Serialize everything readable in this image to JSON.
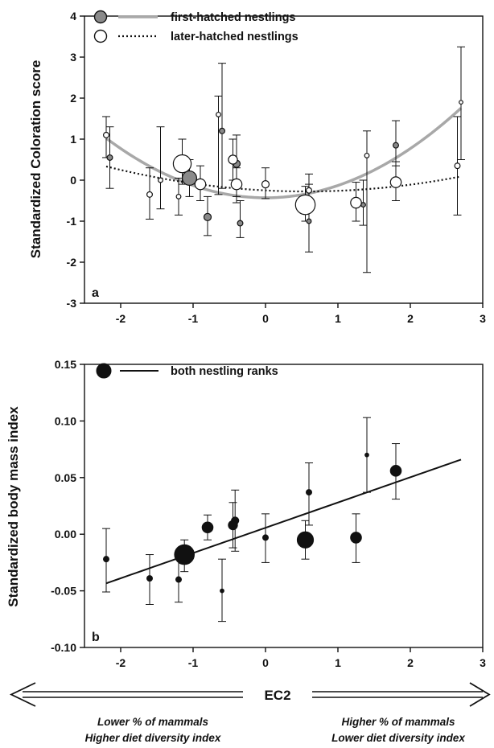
{
  "chart_data": [
    {
      "panel": "a",
      "type": "scatter",
      "ylabel": "Standardized Coloration score",
      "xlim": [
        -2.5,
        3
      ],
      "ylim": [
        -3,
        4
      ],
      "x_ticks": [
        "-2",
        "-1",
        "0",
        "1",
        "2",
        "3"
      ],
      "y_ticks": [
        "-3",
        "-2",
        "-1",
        "0",
        "1",
        "2",
        "3",
        "4"
      ],
      "grid": false,
      "legend_position": "top-left",
      "colors": {
        "first": "#8a8a8a",
        "first_line": "#a8a8a8",
        "later": "#ffffff",
        "stroke": "#111111"
      },
      "series": [
        {
          "name": "first-hatched nestlings",
          "marker": "filled-gray",
          "line": "solid",
          "fit": {
            "type": "quadratic",
            "coefficients": [
              -0.43,
              0.0,
              0.3
            ]
          },
          "points": [
            {
              "x": -2.15,
              "y": 0.55,
              "lo": -0.2,
              "hi": 1.3,
              "size": 2
            },
            {
              "x": -1.05,
              "y": 0.05,
              "lo": -0.4,
              "hi": 0.5,
              "size": 7
            },
            {
              "x": -0.8,
              "y": -0.9,
              "lo": -1.35,
              "hi": -0.4,
              "size": 3
            },
            {
              "x": -0.6,
              "y": 1.2,
              "lo": -0.2,
              "hi": 2.85,
              "size": 2
            },
            {
              "x": -0.4,
              "y": 0.4,
              "lo": -0.55,
              "hi": 1.1,
              "size": 3
            },
            {
              "x": -0.35,
              "y": -1.05,
              "lo": -1.4,
              "hi": -0.5,
              "size": 2
            },
            {
              "x": 0.6,
              "y": -1.0,
              "lo": -1.75,
              "hi": -0.1,
              "size": 1.5
            },
            {
              "x": 1.35,
              "y": -0.6,
              "lo": -1.1,
              "hi": 0.0,
              "size": 1.5
            },
            {
              "x": 1.8,
              "y": 0.85,
              "lo": 0.35,
              "hi": 1.45,
              "size": 2
            }
          ]
        },
        {
          "name": "later-hatched nestlings",
          "marker": "open-white",
          "line": "dotted",
          "fit": {
            "type": "quadratic",
            "coefficients": [
              -0.25,
              -0.09,
              0.08
            ]
          },
          "points": [
            {
              "x": -2.2,
              "y": 1.1,
              "lo": 0.55,
              "hi": 1.55,
              "size": 2
            },
            {
              "x": -1.6,
              "y": -0.35,
              "lo": -0.95,
              "hi": 0.3,
              "size": 2
            },
            {
              "x": -1.45,
              "y": 0.0,
              "lo": -0.7,
              "hi": 1.3,
              "size": 1.5
            },
            {
              "x": -1.15,
              "y": 0.4,
              "lo": -0.1,
              "hi": 1.0,
              "size": 9
            },
            {
              "x": -1.2,
              "y": -0.4,
              "lo": -0.85,
              "hi": 0.05,
              "size": 1.5
            },
            {
              "x": -0.9,
              "y": -0.1,
              "lo": -0.5,
              "hi": 0.35,
              "size": 5
            },
            {
              "x": -0.45,
              "y": 0.5,
              "lo": 0.0,
              "hi": 1.0,
              "size": 4
            },
            {
              "x": -0.4,
              "y": -0.1,
              "lo": -0.4,
              "hi": 0.3,
              "size": 5
            },
            {
              "x": -0.65,
              "y": 1.6,
              "lo": -0.35,
              "hi": 2.05,
              "size": 1.5
            },
            {
              "x": 0.0,
              "y": -0.1,
              "lo": -0.45,
              "hi": 0.3,
              "size": 3
            },
            {
              "x": 0.55,
              "y": -0.6,
              "lo": -1.0,
              "hi": -0.15,
              "size": 10
            },
            {
              "x": 0.6,
              "y": -0.25,
              "lo": -0.7,
              "hi": 0.15,
              "size": 2
            },
            {
              "x": 1.25,
              "y": -0.55,
              "lo": -1.0,
              "hi": -0.05,
              "size": 5
            },
            {
              "x": 1.4,
              "y": 0.6,
              "lo": -2.25,
              "hi": 1.2,
              "size": 1.5
            },
            {
              "x": 1.8,
              "y": -0.05,
              "lo": -0.5,
              "hi": 0.45,
              "size": 5
            },
            {
              "x": 2.65,
              "y": 0.35,
              "lo": -0.85,
              "hi": 1.55,
              "size": 2
            },
            {
              "x": 2.7,
              "y": 1.9,
              "lo": 0.5,
              "hi": 3.25,
              "size": 1
            }
          ]
        }
      ]
    },
    {
      "panel": "b",
      "type": "scatter",
      "ylabel": "Standardized body mass index",
      "xlim": [
        -2.5,
        3
      ],
      "ylim": [
        -0.1,
        0.15
      ],
      "x_ticks": [
        "-2",
        "-1",
        "0",
        "1",
        "2",
        "3"
      ],
      "y_ticks": [
        "-0.10",
        "-0.05",
        "0.00",
        "0.05",
        "0.10",
        "0.15"
      ],
      "grid": false,
      "legend_position": "top-left",
      "colors": {
        "marker": "#111111",
        "line": "#111111"
      },
      "series": [
        {
          "name": "both nestling ranks",
          "marker": "filled-black",
          "line": "solid",
          "fit": {
            "type": "linear",
            "intercept": 0.0057,
            "slope": 0.0223
          },
          "points": [
            {
              "x": -2.2,
              "y": -0.022,
              "lo": -0.051,
              "hi": 0.005,
              "size": 2
            },
            {
              "x": -1.6,
              "y": -0.039,
              "lo": -0.062,
              "hi": -0.018,
              "size": 2
            },
            {
              "x": -1.2,
              "y": -0.04,
              "lo": -0.06,
              "hi": -0.02,
              "size": 2
            },
            {
              "x": -1.12,
              "y": -0.018,
              "lo": -0.033,
              "hi": -0.005,
              "size": 10
            },
            {
              "x": -0.8,
              "y": 0.006,
              "lo": -0.005,
              "hi": 0.017,
              "size": 5
            },
            {
              "x": -0.6,
              "y": -0.05,
              "lo": -0.077,
              "hi": -0.022,
              "size": 1
            },
            {
              "x": -0.42,
              "y": 0.012,
              "lo": -0.015,
              "hi": 0.039,
              "size": 3
            },
            {
              "x": -0.45,
              "y": 0.008,
              "lo": -0.012,
              "hi": 0.028,
              "size": 4
            },
            {
              "x": 0.0,
              "y": -0.003,
              "lo": -0.025,
              "hi": 0.018,
              "size": 2
            },
            {
              "x": 0.55,
              "y": -0.005,
              "lo": -0.022,
              "hi": 0.012,
              "size": 8
            },
            {
              "x": 0.6,
              "y": 0.037,
              "lo": 0.008,
              "hi": 0.063,
              "size": 2
            },
            {
              "x": 1.25,
              "y": -0.003,
              "lo": -0.025,
              "hi": 0.018,
              "size": 5
            },
            {
              "x": 1.4,
              "y": 0.07,
              "lo": 0.037,
              "hi": 0.103,
              "size": 1
            },
            {
              "x": 1.8,
              "y": 0.056,
              "lo": 0.031,
              "hi": 0.08,
              "size": 5
            }
          ]
        }
      ]
    }
  ],
  "panel_labels": {
    "a": "a",
    "b": "b"
  },
  "legend": {
    "first": "first-hatched nestlings",
    "later": "later-hatched nestlings",
    "both": "both nestling ranks"
  },
  "axis_bottom": {
    "label": "EC2",
    "left_lines": [
      "Lower % of mammals",
      "Higher diet diversity index"
    ],
    "right_lines": [
      "Higher % of mammals",
      "Lower diet diversity index"
    ]
  }
}
